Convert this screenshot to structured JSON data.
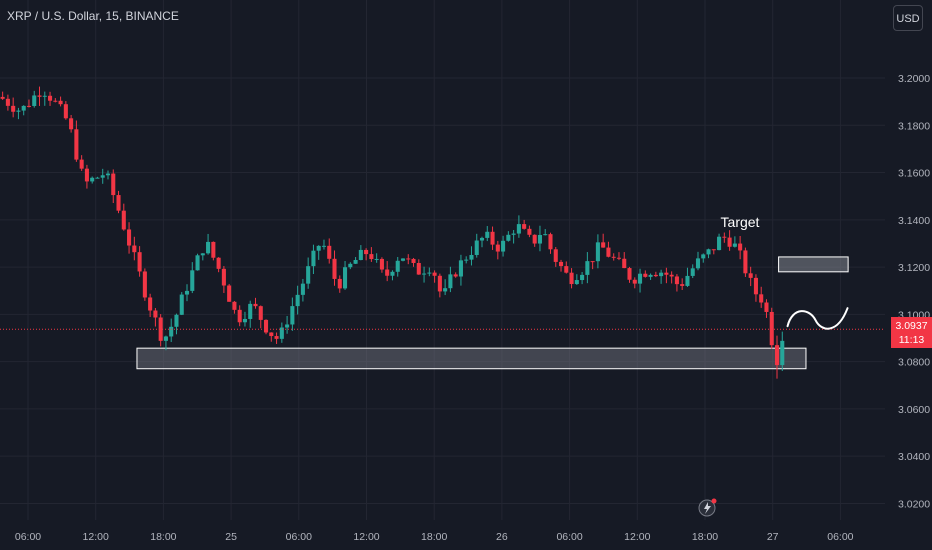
{
  "title": "XRP / U.S. Dollar, 15, BINANCE",
  "currency_button": "USD",
  "current_price": "3.0937",
  "countdown": "11:13",
  "annotation_label": "Target",
  "colors": {
    "background": "#161a25",
    "grid": "#232632",
    "axis_text": "#b2b5be",
    "up": "#26a69a",
    "down": "#f23645",
    "zone": "#787b86"
  },
  "chart_data": {
    "type": "candlestick",
    "title": "XRP / U.S. Dollar, 15, BINANCE",
    "ylim": [
      3.013,
      3.233
    ],
    "y_ticks": [
      "3.2000",
      "3.1800",
      "3.1600",
      "3.1400",
      "3.1200",
      "3.1000",
      "3.0800",
      "3.0600",
      "3.0400",
      "3.0200"
    ],
    "x_ticks": [
      "06:00",
      "12:00",
      "18:00",
      "25",
      "06:00",
      "12:00",
      "18:00",
      "26",
      "06:00",
      "12:00",
      "18:00",
      "27",
      "06:00"
    ],
    "price_path": [
      [
        0,
        3.192
      ],
      [
        4,
        3.186
      ],
      [
        8,
        3.196
      ],
      [
        10,
        3.191
      ],
      [
        13,
        3.181
      ],
      [
        16,
        3.155
      ],
      [
        20,
        3.16
      ],
      [
        23,
        3.141
      ],
      [
        26,
        3.12
      ],
      [
        29,
        3.1
      ],
      [
        31,
        3.089
      ],
      [
        33,
        3.097
      ],
      [
        36,
        3.115
      ],
      [
        39,
        3.131
      ],
      [
        42,
        3.117
      ],
      [
        45,
        3.098
      ],
      [
        48,
        3.104
      ],
      [
        51,
        3.093
      ],
      [
        53,
        3.089
      ],
      [
        55,
        3.101
      ],
      [
        58,
        3.116
      ],
      [
        61,
        3.132
      ],
      [
        64,
        3.112
      ],
      [
        67,
        3.122
      ],
      [
        70,
        3.127
      ],
      [
        73,
        3.115
      ],
      [
        76,
        3.126
      ],
      [
        79,
        3.118
      ],
      [
        82,
        3.121
      ],
      [
        84,
        3.106
      ],
      [
        86,
        3.117
      ],
      [
        89,
        3.126
      ],
      [
        92,
        3.133
      ],
      [
        95,
        3.128
      ],
      [
        98,
        3.138
      ],
      [
        101,
        3.13
      ],
      [
        103,
        3.136
      ],
      [
        105,
        3.125
      ],
      [
        108,
        3.115
      ],
      [
        111,
        3.12
      ],
      [
        114,
        3.129
      ],
      [
        117,
        3.122
      ],
      [
        120,
        3.115
      ],
      [
        123,
        3.119
      ],
      [
        126,
        3.118
      ],
      [
        129,
        3.112
      ],
      [
        132,
        3.121
      ],
      [
        135,
        3.127
      ],
      [
        137,
        3.133
      ],
      [
        139,
        3.131
      ],
      [
        141,
        3.122
      ],
      [
        143,
        3.11
      ],
      [
        145,
        3.106
      ],
      [
        146.9,
        3.085
      ],
      [
        147.5,
        3.081
      ],
      [
        148.8,
        3.095
      ]
    ],
    "support_zone": {
      "x_from": 26.0,
      "x_to": 153.0,
      "y_low": 3.077,
      "y_high": 3.0857
    },
    "target_zone": {
      "x_from": 147.8,
      "x_to": 161.0,
      "y_low": 3.118,
      "y_high": 3.1243
    },
    "current_price_line": 3.0937
  }
}
